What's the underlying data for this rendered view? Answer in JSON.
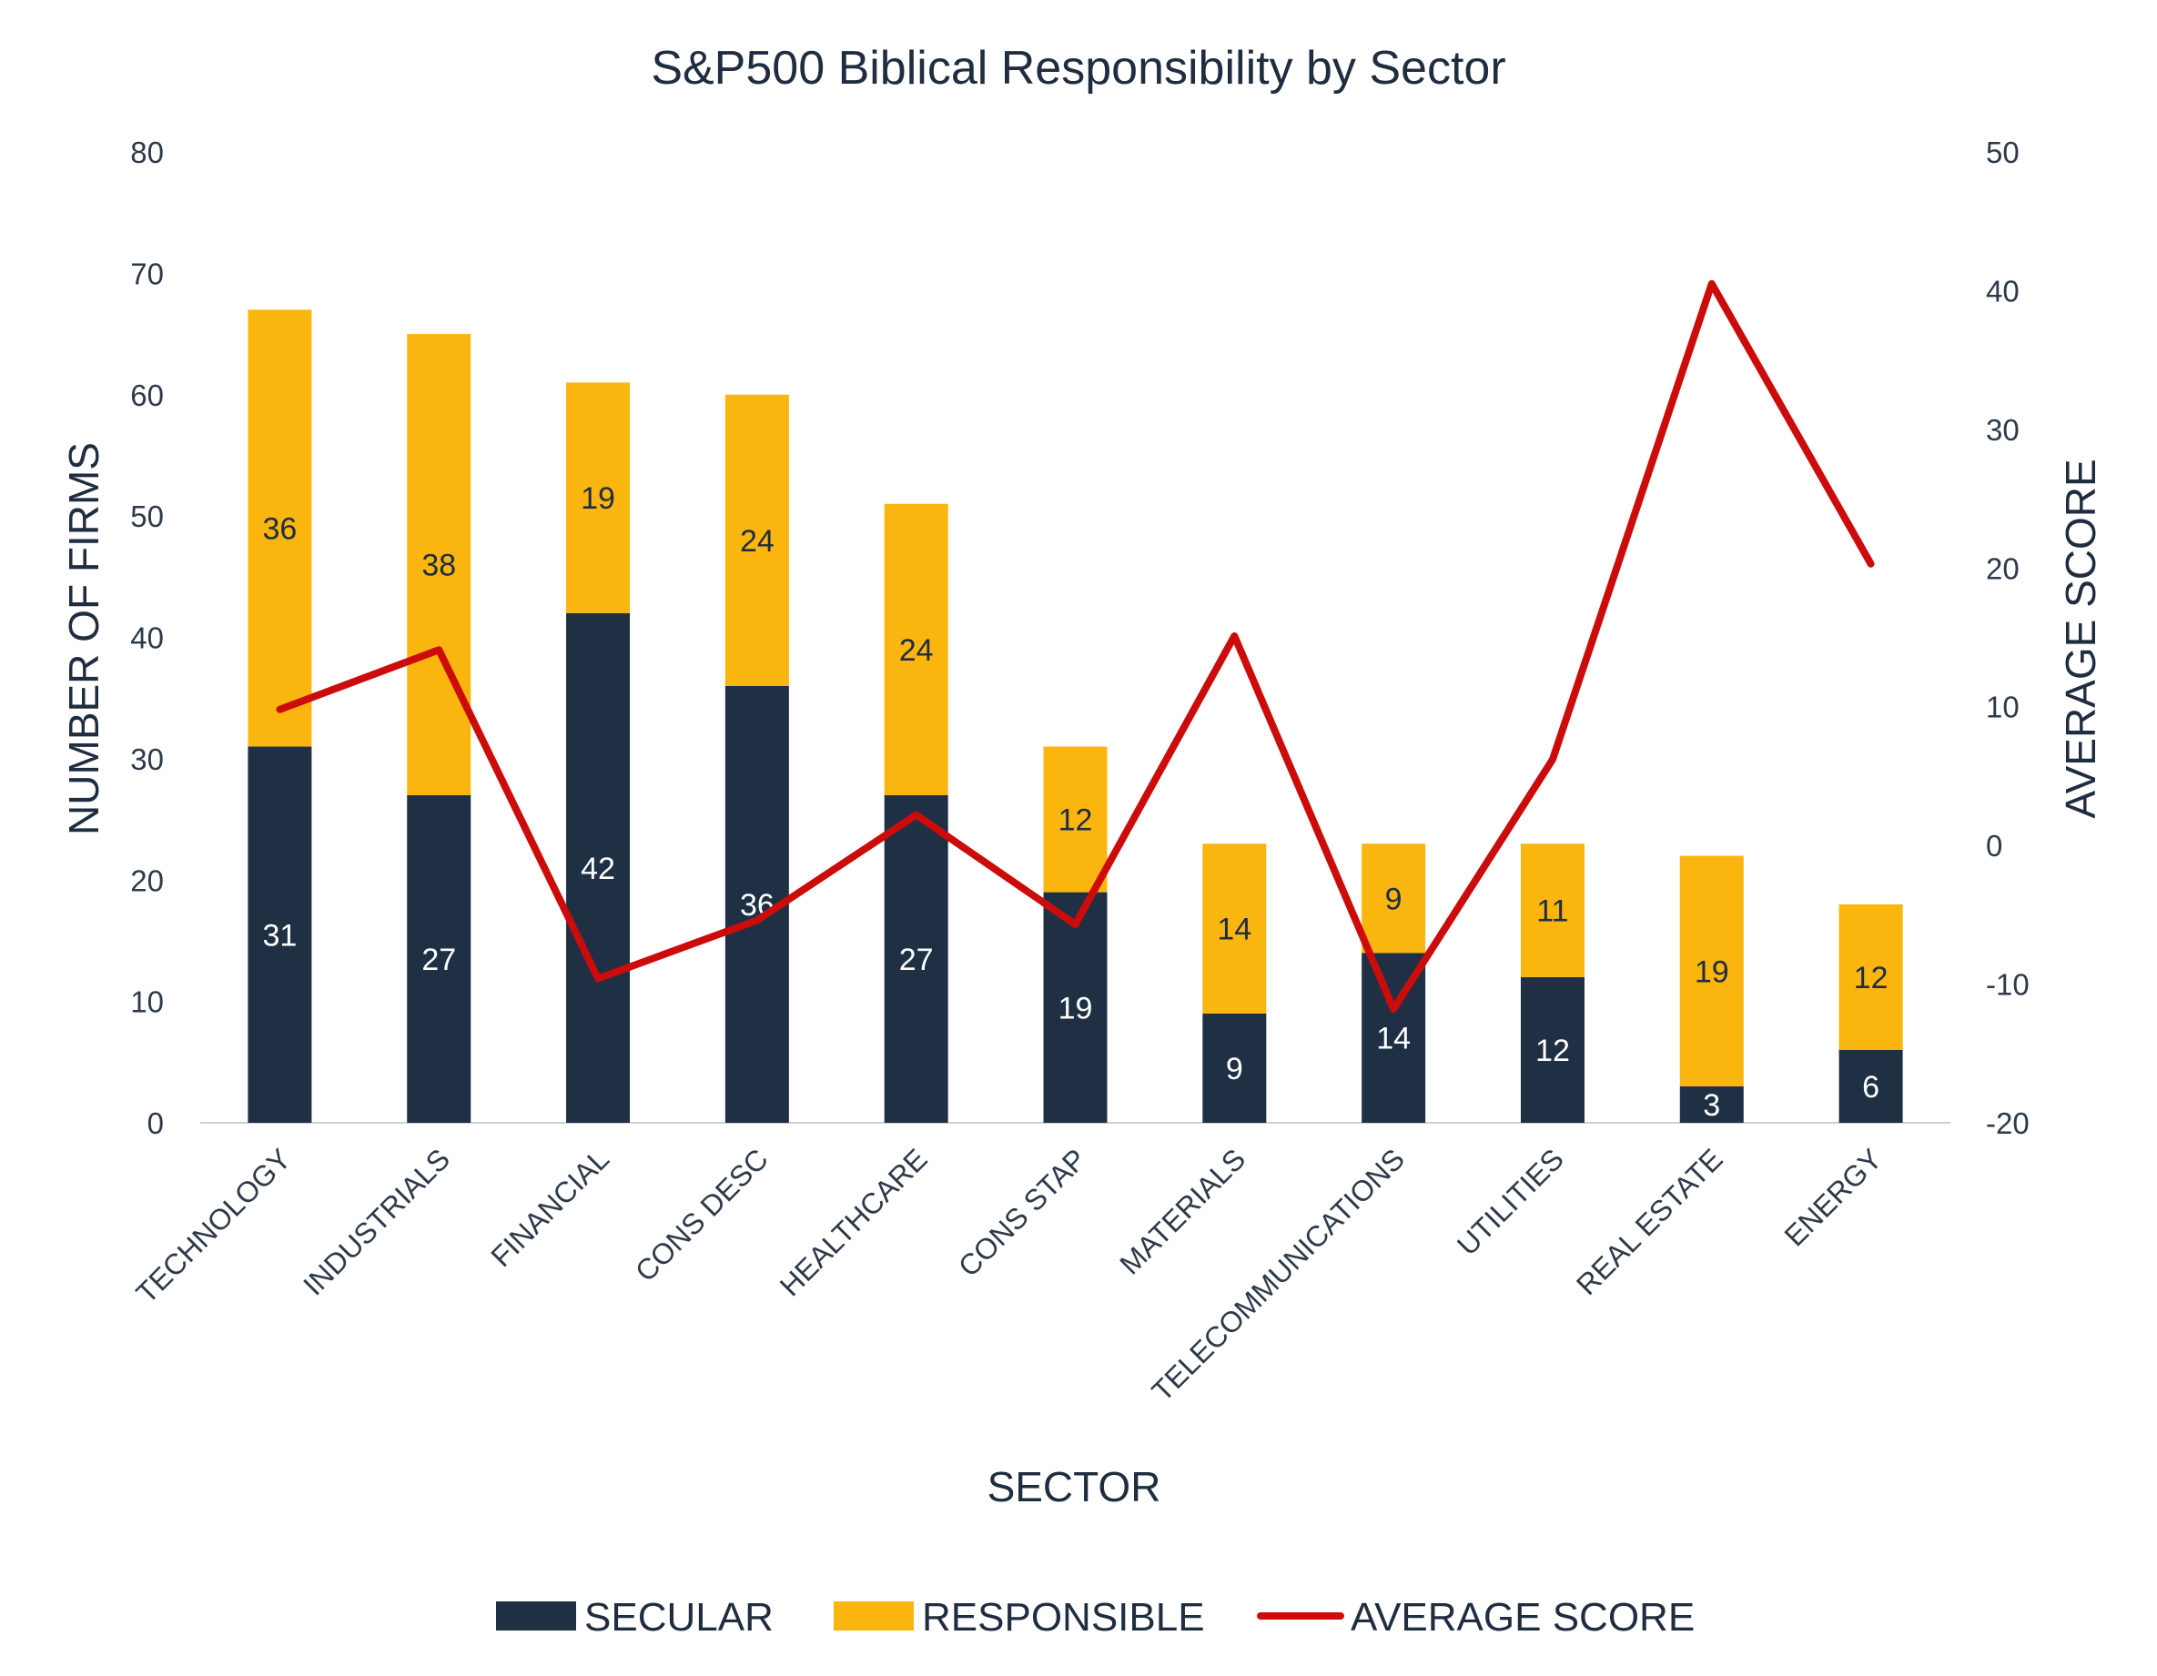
{
  "chart_data": {
    "type": "bar",
    "stacked": true,
    "title": "S&P500 Biblical Responsibility by Sector",
    "xlabel": "SECTOR",
    "ylabel": "NUMBER OF FIRMS",
    "y2label": "AVERAGE SCORE",
    "ylim": [
      0,
      80
    ],
    "yticks": [
      0,
      10,
      20,
      30,
      40,
      50,
      60,
      70,
      80
    ],
    "y2lim": [
      -20,
      50
    ],
    "y2ticks": [
      -20,
      -10,
      0,
      10,
      20,
      30,
      40,
      50
    ],
    "grid": false,
    "legend_position": "bottom",
    "categories": [
      "TECHNOLOGY",
      "INDUSTRIALS",
      "FINANCIAL",
      "CONS DESC",
      "HEALTHCARE",
      "CONS STAP",
      "MATERIALS",
      "TELECOMMUNICATIONS",
      "UTILITIES",
      "REAL ESTATE",
      "ENERGY"
    ],
    "series": [
      {
        "name": "SECULAR",
        "kind": "bar",
        "axis": "left",
        "color": "#1f3044",
        "values": [
          31,
          27,
          42,
          36,
          27,
          19,
          9,
          14,
          12,
          3,
          6
        ]
      },
      {
        "name": "RESPONSIBLE",
        "kind": "bar",
        "axis": "left",
        "color": "#fbb50f",
        "values": [
          36,
          38,
          19,
          24,
          24,
          12,
          14,
          9,
          11,
          19,
          12
        ]
      },
      {
        "name": "AVERAGE SCORE",
        "kind": "line",
        "axis": "right",
        "color": "#cc0b0b",
        "values": [
          9.8,
          14.1,
          -9.6,
          -5.4,
          2.2,
          -5.7,
          15.1,
          -11.8,
          6.2,
          40.5,
          20.3
        ]
      }
    ]
  }
}
